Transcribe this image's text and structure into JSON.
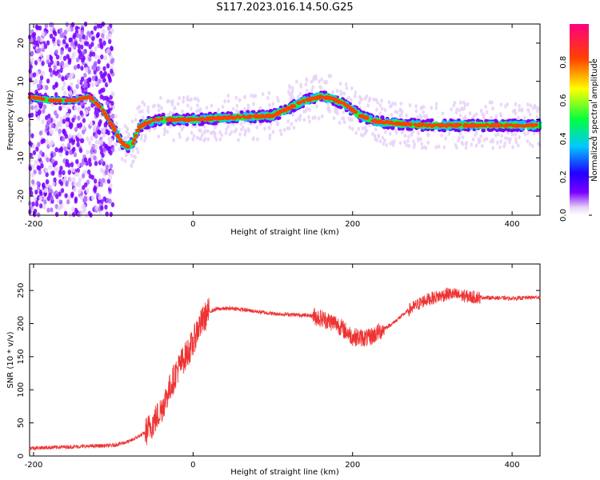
{
  "title": "S117.2023.016.14.50.G25",
  "chart_data": [
    {
      "type": "heatmap",
      "xlabel": "Height of straight line (km)",
      "ylabel": "Frequency (Hz)",
      "xlim": [
        -205,
        435
      ],
      "ylim": [
        -25,
        25
      ],
      "x_ticks": [
        -200,
        0,
        200,
        400
      ],
      "y_ticks": [
        -20,
        -10,
        0,
        10,
        20
      ],
      "colorbar": {
        "label": "Normalized spectral amplitude",
        "range": [
          0.0,
          1.0
        ],
        "ticks": [
          "0.0",
          "0.2",
          "0.4",
          "0.6",
          "0.8"
        ],
        "colors": [
          "#ffffff",
          "#e8d4f8",
          "#7a00ff",
          "#2000ff",
          "#00c8ff",
          "#00ff40",
          "#ffff00",
          "#ff4000",
          "#ff0080"
        ]
      },
      "ridge_x": [
        -205,
        -180,
        -150,
        -130,
        -115,
        -100,
        -90,
        -82,
        -75,
        -68,
        -60,
        -45,
        -30,
        0,
        40,
        100,
        120,
        140,
        160,
        175,
        190,
        210,
        230,
        255,
        290,
        320,
        350,
        400,
        435
      ],
      "ridge_y": [
        6,
        5,
        5,
        6,
        3,
        -2,
        -6,
        -7,
        -6,
        -2,
        -1,
        0,
        0,
        0,
        0.5,
        1,
        3,
        5,
        6,
        5.5,
        4,
        1,
        -0.5,
        -1,
        -1.5,
        -1.5,
        -1.5,
        -1.5,
        -1.5
      ],
      "noise_region_x": [
        -205,
        -100
      ]
    },
    {
      "type": "line",
      "xlabel": "Height of straight line (km)",
      "ylabel": "SNR (10 * v/v)",
      "xlim": [
        -205,
        435
      ],
      "ylim": [
        0,
        290
      ],
      "x_ticks": [
        -200,
        0,
        200,
        400
      ],
      "y_ticks": [
        0,
        50,
        100,
        150,
        200,
        250
      ],
      "color": "#ee3333",
      "x": [
        -205,
        -150,
        -100,
        -80,
        -60,
        -50,
        -40,
        -30,
        -20,
        -10,
        0,
        5,
        10,
        15,
        20,
        30,
        50,
        100,
        150,
        180,
        200,
        220,
        250,
        270,
        290,
        320,
        350,
        400,
        435
      ],
      "y": [
        12,
        14,
        16,
        22,
        35,
        50,
        70,
        100,
        130,
        150,
        170,
        190,
        200,
        210,
        218,
        222,
        223,
        215,
        212,
        200,
        180,
        178,
        200,
        220,
        235,
        245,
        240,
        238,
        240
      ]
    }
  ]
}
